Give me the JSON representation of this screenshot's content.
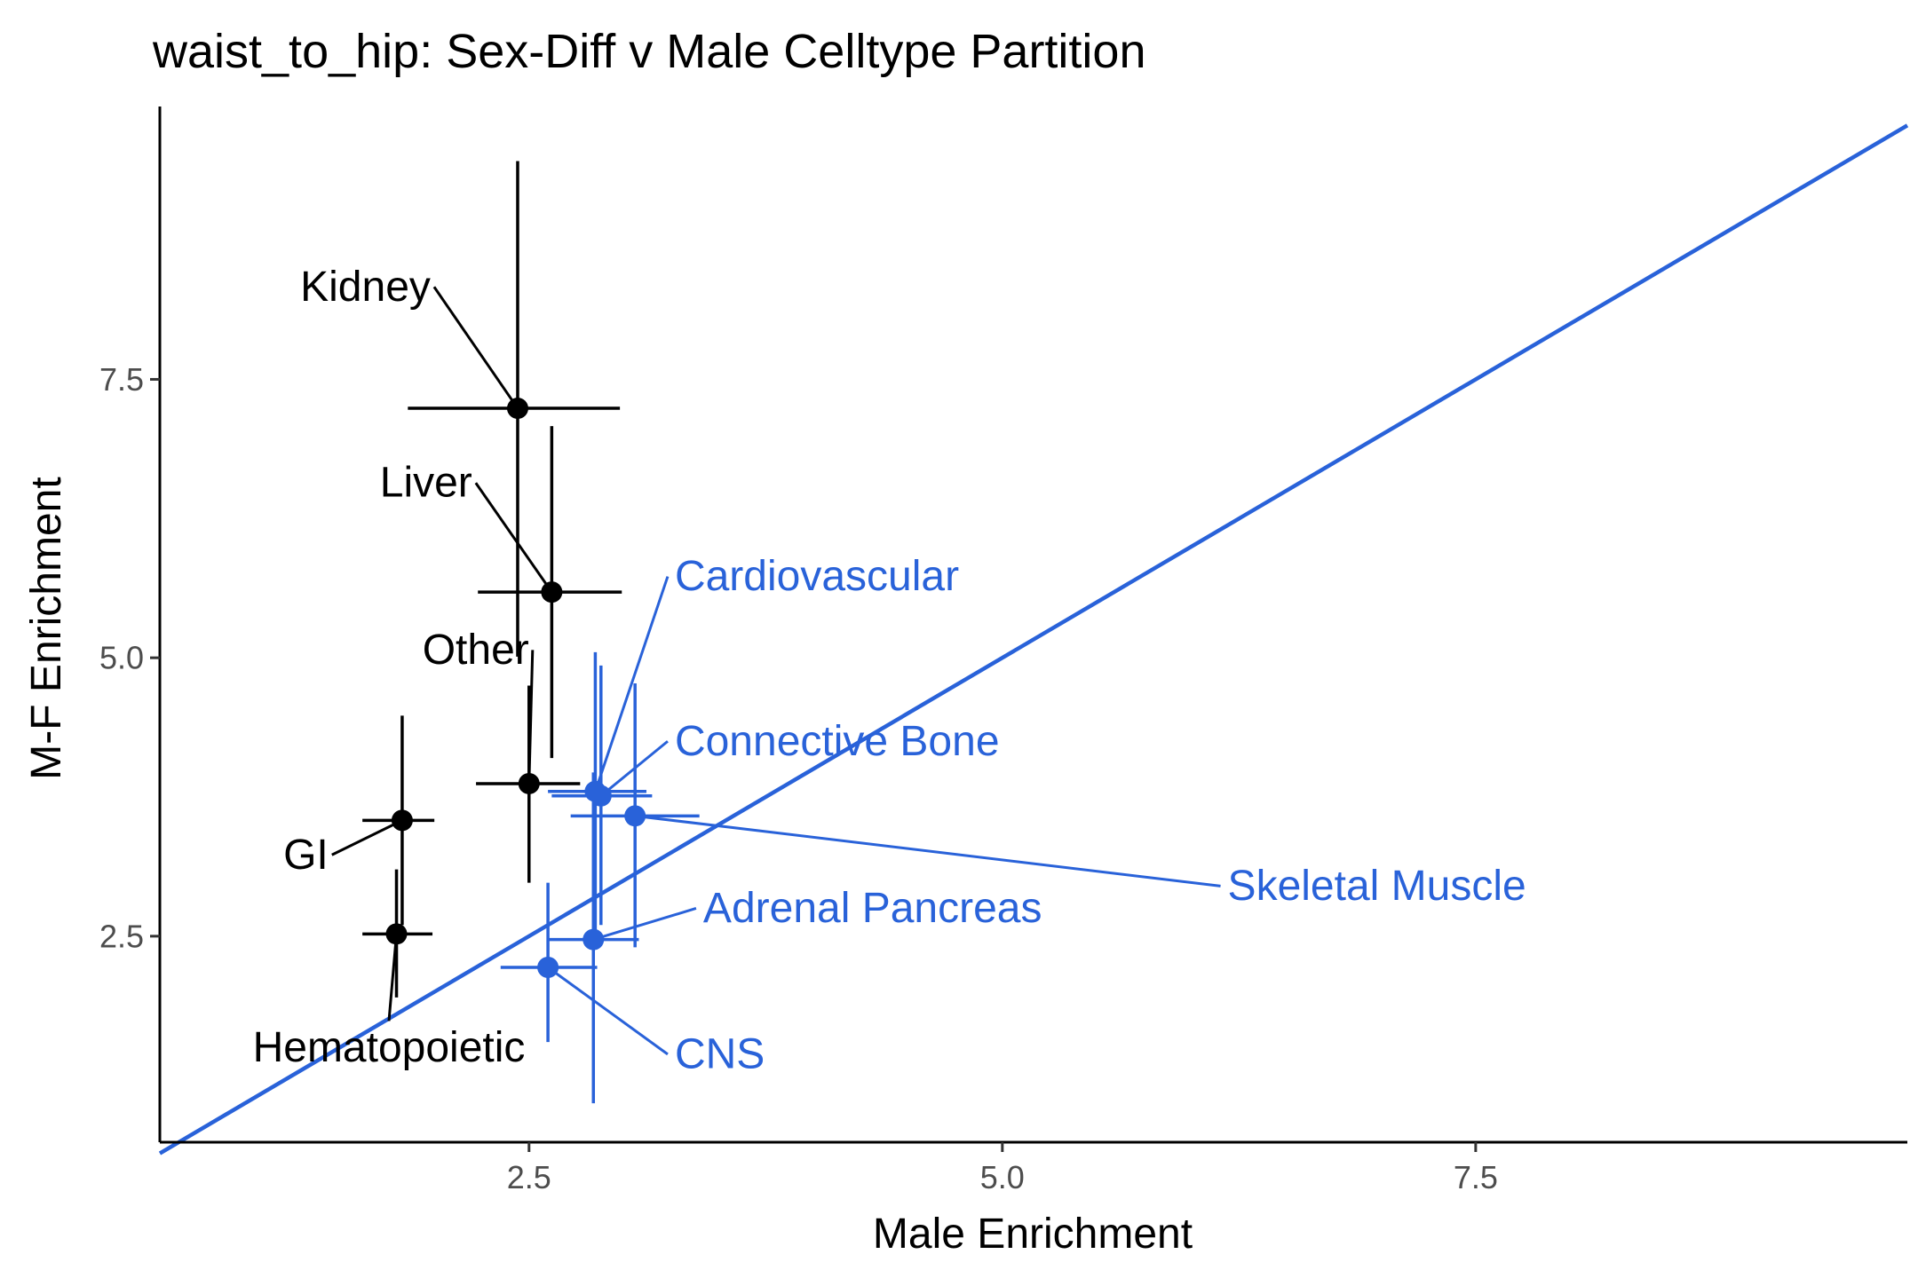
{
  "chart_data": {
    "type": "scatter",
    "title": "waist_to_hip: Sex-Diff v Male Celltype Partition",
    "xlabel": "Male Enrichment",
    "ylabel": "M-F Enrichment",
    "xlim": [
      0.55,
      9.78
    ],
    "ylim": [
      0.65,
      9.95
    ],
    "x_ticks": [
      2.5,
      5.0,
      7.5
    ],
    "y_ticks": [
      2.5,
      5.0,
      7.5
    ],
    "x_tick_labels": [
      "2.5",
      "5.0",
      "7.5"
    ],
    "y_tick_labels": [
      "2.5",
      "5.0",
      "7.5"
    ],
    "grid": false,
    "legend": "none",
    "reference_line": {
      "slope": 1,
      "intercept": 0,
      "color": "#2962d9"
    },
    "colors": {
      "not_significant": "#000000",
      "significant": "#2962d9",
      "tick_label": "#4d4d4d"
    },
    "points": [
      {
        "label": "Kidney",
        "x": 2.44,
        "y": 7.24,
        "x_lo": 1.86,
        "x_hi": 2.98,
        "y_lo": 5.01,
        "y_hi": 9.46,
        "color": "#000000",
        "label_x": 1.98,
        "label_y": 8.33,
        "label_anchor": "end"
      },
      {
        "label": "Liver",
        "x": 2.62,
        "y": 5.59,
        "x_lo": 2.23,
        "x_hi": 2.99,
        "y_lo": 4.1,
        "y_hi": 7.08,
        "color": "#000000",
        "label_x": 2.2,
        "label_y": 6.57,
        "label_anchor": "end"
      },
      {
        "label": "Other",
        "x": 2.5,
        "y": 3.87,
        "x_lo": 2.22,
        "x_hi": 2.77,
        "y_lo": 2.98,
        "y_hi": 4.75,
        "color": "#000000",
        "label_x": 2.5,
        "label_y": 5.07,
        "label_anchor": "end"
      },
      {
        "label": "GI",
        "x": 1.83,
        "y": 3.54,
        "x_lo": 1.62,
        "x_hi": 2.0,
        "y_lo": 2.6,
        "y_hi": 4.48,
        "color": "#000000",
        "label_x": 1.44,
        "label_y": 3.23,
        "label_anchor": "end"
      },
      {
        "label": "Hematopoietic",
        "x": 1.8,
        "y": 2.52,
        "x_lo": 1.62,
        "x_hi": 1.99,
        "y_lo": 1.95,
        "y_hi": 3.1,
        "color": "#000000",
        "label_x": 1.76,
        "label_y": 1.5,
        "label_anchor": "middle"
      },
      {
        "label": "Cardiovascular",
        "x": 2.85,
        "y": 3.8,
        "x_lo": 2.6,
        "x_hi": 3.12,
        "y_lo": 2.55,
        "y_hi": 5.05,
        "color": "#2962d9",
        "label_x": 3.27,
        "label_y": 5.73,
        "label_anchor": "start"
      },
      {
        "label": "Connective Bone",
        "x": 2.88,
        "y": 3.76,
        "x_lo": 2.62,
        "x_hi": 3.15,
        "y_lo": 2.6,
        "y_hi": 4.93,
        "color": "#2962d9",
        "label_x": 3.27,
        "label_y": 4.25,
        "label_anchor": "start"
      },
      {
        "label": "Skeletal Muscle",
        "x": 3.06,
        "y": 3.58,
        "x_lo": 2.72,
        "x_hi": 3.4,
        "y_lo": 2.4,
        "y_hi": 4.77,
        "color": "#2962d9",
        "label_x": 6.19,
        "label_y": 2.95,
        "label_anchor": "start"
      },
      {
        "label": "Adrenal Pancreas",
        "x": 2.84,
        "y": 2.47,
        "x_lo": 2.6,
        "x_hi": 3.08,
        "y_lo": 1.0,
        "y_hi": 3.97,
        "color": "#2962d9",
        "label_x": 3.42,
        "label_y": 2.75,
        "label_anchor": "start"
      },
      {
        "label": "CNS",
        "x": 2.6,
        "y": 2.22,
        "x_lo": 2.35,
        "x_hi": 2.86,
        "y_lo": 1.55,
        "y_hi": 2.98,
        "color": "#2962d9",
        "label_x": 3.27,
        "label_y": 1.44,
        "label_anchor": "start"
      }
    ]
  }
}
